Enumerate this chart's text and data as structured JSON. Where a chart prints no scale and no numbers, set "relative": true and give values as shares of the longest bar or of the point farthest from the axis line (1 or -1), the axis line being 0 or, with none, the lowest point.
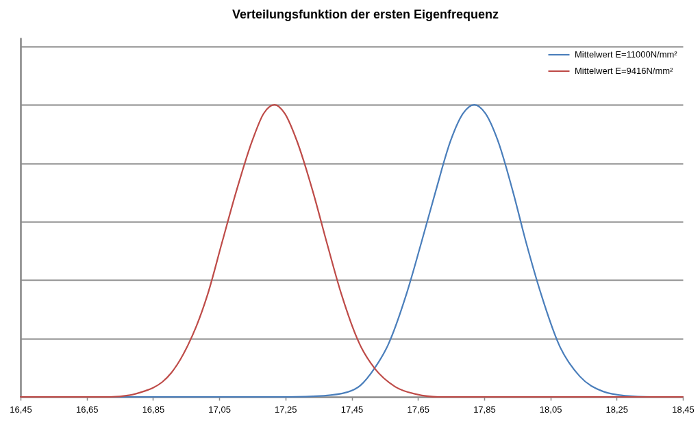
{
  "chart_data": {
    "type": "line",
    "title": "Verteilungsfunktion der ersten Eigenfrequenz",
    "relative": true,
    "xlim": [
      16.45,
      18.45
    ],
    "xticks": [
      {
        "value": 16.45,
        "label": "16,45"
      },
      {
        "value": 16.65,
        "label": "16,65"
      },
      {
        "value": 16.85,
        "label": "16,85"
      },
      {
        "value": 17.05,
        "label": "17,05"
      },
      {
        "value": 17.25,
        "label": "17,25"
      },
      {
        "value": 17.45,
        "label": "17,45"
      },
      {
        "value": 17.65,
        "label": "17,65"
      },
      {
        "value": 17.85,
        "label": "17,85"
      },
      {
        "value": 18.05,
        "label": "18,05"
      },
      {
        "value": 18.25,
        "label": "18,25"
      },
      {
        "value": 18.45,
        "label": "18,45"
      }
    ],
    "grid": "y",
    "tick_labels": "x",
    "legend": "top right",
    "series": [
      {
        "name": "Mittelwert E=11000N/mm²",
        "color": "#4a7ebb",
        "x": [
          16.45,
          17.257,
          17.366,
          17.436,
          17.476,
          17.519,
          17.559,
          17.615,
          17.66,
          17.703,
          17.749,
          17.786,
          17.82,
          17.854,
          17.891,
          17.937,
          17.977,
          18.022,
          18.077,
          18.139,
          18.208,
          18.276,
          18.353,
          18.45
        ],
        "values": [
          0,
          0,
          0.004,
          0.016,
          0.039,
          0.098,
          0.176,
          0.351,
          0.527,
          0.702,
          0.878,
          0.97,
          1,
          0.97,
          0.878,
          0.702,
          0.527,
          0.351,
          0.176,
          0.07,
          0.019,
          0.004,
          0,
          0
        ]
      },
      {
        "name": "Mittelwert E=9416N/mm²",
        "color": "#be4b48",
        "x": [
          16.45,
          16.719,
          16.781,
          16.822,
          16.85,
          16.878,
          16.905,
          16.933,
          16.955,
          16.981,
          17.015,
          17.058,
          17.101,
          17.15,
          17.184,
          17.217,
          17.248,
          17.284,
          17.333,
          17.375,
          17.419,
          17.476,
          17.519,
          17.581,
          17.645,
          17.712,
          18.45
        ],
        "values": [
          0,
          0,
          0.006,
          0.019,
          0.031,
          0.051,
          0.082,
          0.129,
          0.176,
          0.242,
          0.351,
          0.527,
          0.702,
          0.878,
          0.97,
          1,
          0.97,
          0.878,
          0.702,
          0.527,
          0.351,
          0.176,
          0.098,
          0.035,
          0.009,
          0,
          0
        ]
      }
    ]
  }
}
